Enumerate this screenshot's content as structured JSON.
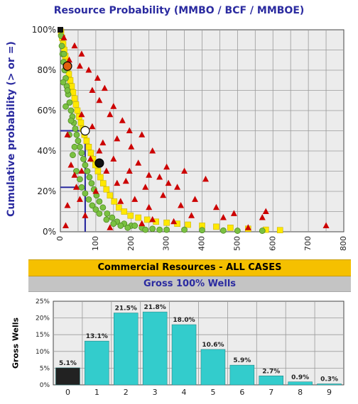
{
  "title": "Resource Probability (MMBO / BCF / MMBOE)",
  "colors": {
    "title": "#2b2ba0",
    "triangle": "#cc0000",
    "green": "#7ac142",
    "yellow": "#ffe800",
    "orange_marker": "#e06010",
    "bar": "#33cccc",
    "bar_zero": "#222222",
    "banner": "#f5c000",
    "subbanner": "#c4c4c4"
  },
  "banner": {
    "title": "Commercial Resources - ALL CASES",
    "subtitle": "Gross 100% Wells"
  },
  "chart_data": [
    {
      "type": "scatter",
      "title": "Resource Probability (MMBO / BCF / MMBOE)",
      "xlabel": "",
      "ylabel": "Cumulative probability (> or =)",
      "xlim": [
        0,
        800
      ],
      "ylim": [
        0,
        100
      ],
      "x_ticks": [
        "0",
        "100",
        "200",
        "300",
        "400",
        "500",
        "600",
        "700",
        "800"
      ],
      "y_ticks": [
        "0%",
        "20%",
        "40%",
        "60%",
        "80%",
        "100%"
      ],
      "grid": true,
      "series": [
        {
          "marker": "square-yellow",
          "points": [
            [
              2,
              99
            ],
            [
              5,
              96
            ],
            [
              8,
              93
            ],
            [
              11,
              90
            ],
            [
              14,
              87
            ],
            [
              17,
              84
            ],
            [
              20,
              81
            ],
            [
              24,
              78
            ],
            [
              28,
              75
            ],
            [
              32,
              72
            ],
            [
              36,
              69
            ],
            [
              40,
              66
            ],
            [
              44,
              63
            ],
            [
              48,
              60
            ],
            [
              53,
              57
            ],
            [
              58,
              54
            ],
            [
              63,
              51
            ],
            [
              68,
              48
            ],
            [
              74,
              45
            ],
            [
              80,
              42
            ],
            [
              86,
              39
            ],
            [
              92,
              36
            ],
            [
              99,
              33
            ],
            [
              106,
              30
            ],
            [
              113,
              27
            ],
            [
              121,
              24
            ],
            [
              130,
              21
            ],
            [
              140,
              18
            ],
            [
              152,
              15
            ],
            [
              165,
              12
            ],
            [
              180,
              10
            ],
            [
              198,
              8
            ],
            [
              220,
              7
            ],
            [
              245,
              6
            ],
            [
              270,
              5
            ],
            [
              300,
              4.5
            ],
            [
              330,
              4
            ],
            [
              360,
              3.5
            ],
            [
              400,
              3
            ],
            [
              440,
              2.5
            ],
            [
              480,
              2
            ],
            [
              530,
              1.5
            ],
            [
              580,
              1
            ],
            [
              620,
              0.8
            ]
          ]
        },
        {
          "marker": "circle-green",
          "points": [
            [
              2,
              97
            ],
            [
              4,
              92
            ],
            [
              6,
              88
            ],
            [
              9,
              84
            ],
            [
              12,
              80
            ],
            [
              15,
              76
            ],
            [
              18,
              72
            ],
            [
              22,
              68
            ],
            [
              26,
              64
            ],
            [
              30,
              60
            ],
            [
              34,
              57
            ],
            [
              38,
              54
            ],
            [
              42,
              51
            ],
            [
              46,
              48
            ],
            [
              50,
              45
            ],
            [
              55,
              42
            ],
            [
              60,
              39
            ],
            [
              65,
              36
            ],
            [
              70,
              33
            ],
            [
              76,
              30
            ],
            [
              82,
              27
            ],
            [
              88,
              24
            ],
            [
              95,
              21
            ],
            [
              102,
              18
            ],
            [
              110,
              15
            ],
            [
              120,
              12
            ],
            [
              132,
              9
            ],
            [
              146,
              7
            ],
            [
              160,
              5
            ],
            [
              180,
              4
            ],
            [
              200,
              3
            ],
            [
              230,
              2
            ],
            [
              260,
              1.5
            ],
            [
              300,
              1
            ],
            [
              350,
              1
            ],
            [
              400,
              0.8
            ],
            [
              460,
              0.6
            ],
            [
              500,
              0.5
            ],
            [
              570,
              0.5
            ],
            [
              10,
              88
            ],
            [
              20,
              70
            ],
            [
              30,
              55
            ],
            [
              40,
              42
            ],
            [
              15,
              62
            ],
            [
              25,
              48
            ],
            [
              35,
              38
            ],
            [
              45,
              30
            ],
            [
              55,
              26
            ],
            [
              8,
              74
            ],
            [
              60,
              22
            ],
            [
              70,
              19
            ],
            [
              80,
              16
            ],
            [
              90,
              13
            ],
            [
              100,
              11
            ],
            [
              110,
              9
            ],
            [
              130,
              6
            ],
            [
              150,
              4
            ],
            [
              170,
              3
            ],
            [
              190,
              2
            ],
            [
              210,
              3
            ],
            [
              240,
              1
            ],
            [
              280,
              1
            ]
          ]
        },
        {
          "marker": "triangle-red",
          "points": [
            [
              10,
              96
            ],
            [
              40,
              92
            ],
            [
              60,
              88
            ],
            [
              55,
              82
            ],
            [
              80,
              80
            ],
            [
              25,
              85
            ],
            [
              105,
              76
            ],
            [
              125,
              71
            ],
            [
              90,
              70
            ],
            [
              150,
              62
            ],
            [
              140,
              58
            ],
            [
              110,
              65
            ],
            [
              175,
              55
            ],
            [
              195,
              50
            ],
            [
              230,
              48
            ],
            [
              120,
              44
            ],
            [
              200,
              42
            ],
            [
              160,
              46
            ],
            [
              90,
              52
            ],
            [
              260,
              40
            ],
            [
              300,
              32
            ],
            [
              220,
              34
            ],
            [
              250,
              28
            ],
            [
              280,
              27
            ],
            [
              185,
              25
            ],
            [
              240,
              22
            ],
            [
              350,
              30
            ],
            [
              330,
              22
            ],
            [
              160,
              24
            ],
            [
              130,
              30
            ],
            [
              410,
              26
            ],
            [
              290,
              18
            ],
            [
              210,
              16
            ],
            [
              170,
              15
            ],
            [
              250,
              12
            ],
            [
              340,
              13
            ],
            [
              380,
              16
            ],
            [
              440,
              12
            ],
            [
              490,
              9
            ],
            [
              370,
              8
            ],
            [
              260,
              6
            ],
            [
              230,
              4
            ],
            [
              570,
              7
            ],
            [
              580,
              10
            ],
            [
              750,
              3
            ],
            [
              530,
              2
            ],
            [
              100,
              20
            ],
            [
              45,
              22
            ],
            [
              20,
              13
            ],
            [
              60,
              30
            ],
            [
              30,
              33
            ],
            [
              70,
              8
            ],
            [
              15,
              3
            ],
            [
              140,
              2
            ],
            [
              460,
              7
            ],
            [
              320,
              5
            ],
            [
              20,
              48
            ],
            [
              40,
              28
            ],
            [
              85,
              36
            ],
            [
              150,
              36
            ],
            [
              110,
              40
            ],
            [
              195,
              30
            ],
            [
              305,
              24
            ],
            [
              60,
              58
            ],
            [
              55,
              16
            ]
          ]
        }
      ],
      "markers": [
        {
          "name": "p100",
          "x": 0,
          "y": 100,
          "color": "#111111",
          "shape": "square"
        },
        {
          "name": "p90",
          "x": 20,
          "y": 82,
          "color": "#e06010",
          "shape": "circle"
        },
        {
          "name": "p50",
          "x": 70,
          "y": 50,
          "color": "#ffffff",
          "shape": "circle"
        },
        {
          "name": "p10",
          "x": 110,
          "y": 34,
          "color": "#111111",
          "shape": "circle"
        }
      ],
      "reference_lines": [
        {
          "x": 70,
          "y": 50,
          "color": "#2b2ba0"
        },
        {
          "x": 70,
          "y": 22,
          "color": "#2b2ba0"
        }
      ]
    },
    {
      "type": "bar",
      "ylabel": "Gross Wells",
      "categories": [
        "0",
        "1",
        "2",
        "3",
        "4",
        "5",
        "6",
        "7",
        "8",
        "9"
      ],
      "values": [
        5.1,
        13.1,
        21.5,
        21.8,
        18.0,
        10.6,
        5.9,
        2.7,
        0.9,
        0.3
      ],
      "labels": [
        "5.1%",
        "13.1%",
        "21.5%",
        "21.8%",
        "18.0%",
        "10.6%",
        "5.9%",
        "2.7%",
        "0.9%",
        "0.3%"
      ],
      "ylim": [
        0,
        25
      ],
      "y_ticks": [
        "0%",
        "5%",
        "10%",
        "15%",
        "20%",
        "25%"
      ],
      "grid": true
    }
  ]
}
